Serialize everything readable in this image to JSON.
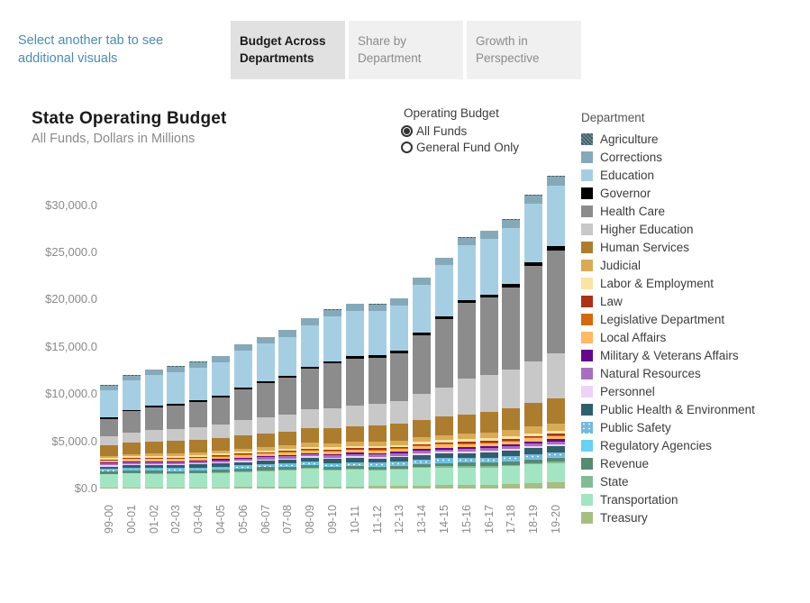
{
  "page": {
    "intro_text": "Select another tab to see additional visuals"
  },
  "tabs": [
    {
      "label": "Budget Across Departments",
      "active": true
    },
    {
      "label": "Share by Department",
      "active": false
    },
    {
      "label": "Growth in Perspective",
      "active": false
    }
  ],
  "controls": {
    "title": "Operating Budget",
    "options": [
      {
        "label": "All Funds",
        "selected": true
      },
      {
        "label": "General Fund Only",
        "selected": false
      }
    ]
  },
  "chart": {
    "title": "State Operating Budget",
    "subtitle": "All Funds, Dollars in Millions"
  },
  "legend": {
    "title": "Department"
  },
  "chart_data": {
    "type": "bar",
    "stacked": true,
    "title": "State Operating Budget",
    "subtitle": "All Funds, Dollars in Millions",
    "ylabel": "Dollars in Millions",
    "ylim": [
      0,
      33500
    ],
    "grid": false,
    "legend_position": "right",
    "yticks": [
      "$0.0",
      "$5,000.0",
      "$10,000.0",
      "$15,000.0",
      "$20,000.0",
      "$25,000.0",
      "$30,000.0"
    ],
    "ytick_values": [
      0,
      5000,
      10000,
      15000,
      20000,
      25000,
      30000
    ],
    "x": [
      "99-00",
      "00-01",
      "01-02",
      "02-03",
      "03-04",
      "04-05",
      "05-06",
      "06-07",
      "07-08",
      "08-09",
      "09-10",
      "10-11",
      "11-12",
      "12-13",
      "13-14",
      "14-15",
      "15-16",
      "16-17",
      "17-18",
      "18-19",
      "19-20"
    ],
    "series": [
      {
        "name": "Agriculture",
        "color": "#4a6f78",
        "pattern": "hatch",
        "values": [
          30,
          31,
          32,
          33,
          34,
          35,
          36,
          37,
          38,
          39,
          40,
          41,
          42,
          43,
          45,
          46,
          48,
          50,
          52,
          55,
          58
        ]
      },
      {
        "name": "Corrections",
        "color": "#85a9b9",
        "pattern": null,
        "values": [
          500,
          530,
          560,
          580,
          600,
          620,
          650,
          680,
          710,
          730,
          740,
          730,
          720,
          730,
          750,
          780,
          800,
          820,
          850,
          900,
          940
        ]
      },
      {
        "name": "Education",
        "color": "#a6cee3",
        "pattern": null,
        "values": [
          2900,
          3100,
          3250,
          3350,
          3450,
          3600,
          3900,
          4000,
          4100,
          4400,
          4700,
          4800,
          4700,
          4800,
          5100,
          5400,
          5800,
          5900,
          5950,
          6200,
          6450
        ]
      },
      {
        "name": "Governor",
        "color": "#000000",
        "pattern": null,
        "values": [
          150,
          160,
          170,
          175,
          180,
          185,
          190,
          200,
          210,
          220,
          230,
          240,
          250,
          260,
          280,
          300,
          320,
          340,
          360,
          380,
          400
        ]
      },
      {
        "name": "Health Care",
        "color": "#8c8c8c",
        "pattern": null,
        "values": [
          1800,
          2200,
          2450,
          2550,
          2700,
          2850,
          3300,
          3600,
          3900,
          4300,
          4800,
          5000,
          4900,
          5100,
          6200,
          7200,
          8000,
          8200,
          8700,
          10100,
          10900
        ]
      },
      {
        "name": "Higher Education",
        "color": "#c8c8c8",
        "pattern": null,
        "values": [
          950,
          1100,
          1200,
          1250,
          1300,
          1400,
          1600,
          1700,
          1800,
          2000,
          2100,
          2200,
          2300,
          2400,
          2700,
          3100,
          3800,
          3900,
          4100,
          4400,
          4800
        ]
      },
      {
        "name": "Human Services",
        "color": "#ad7d2f",
        "pattern": null,
        "values": [
          1150,
          1200,
          1250,
          1280,
          1300,
          1350,
          1400,
          1450,
          1500,
          1550,
          1600,
          1650,
          1700,
          1750,
          1850,
          1950,
          2050,
          2150,
          2300,
          2500,
          2650
        ]
      },
      {
        "name": "Judicial",
        "color": "#d9ab57",
        "pattern": null,
        "values": [
          250,
          270,
          290,
          300,
          310,
          320,
          340,
          360,
          380,
          400,
          420,
          440,
          460,
          480,
          520,
          560,
          600,
          640,
          680,
          720,
          760
        ]
      },
      {
        "name": "Labor & Employment",
        "color": "#fae3a3",
        "pattern": null,
        "values": [
          150,
          155,
          160,
          165,
          170,
          175,
          180,
          185,
          190,
          200,
          210,
          215,
          220,
          225,
          235,
          245,
          255,
          265,
          275,
          290,
          300
        ]
      },
      {
        "name": "Law",
        "color": "#a93317",
        "pattern": null,
        "values": [
          80,
          85,
          90,
          92,
          95,
          98,
          100,
          105,
          110,
          115,
          120,
          125,
          130,
          135,
          140,
          145,
          150,
          155,
          160,
          165,
          170
        ]
      },
      {
        "name": "Legislative Department",
        "color": "#d2690f",
        "pattern": null,
        "values": [
          50,
          52,
          55,
          57,
          60,
          62,
          65,
          67,
          70,
          72,
          75,
          77,
          80,
          82,
          85,
          88,
          90,
          95,
          98,
          100,
          105
        ]
      },
      {
        "name": "Local Affairs",
        "color": "#fdb964",
        "pattern": null,
        "values": [
          200,
          210,
          220,
          225,
          230,
          240,
          250,
          260,
          270,
          280,
          290,
          295,
          300,
          305,
          310,
          315,
          320,
          325,
          330,
          340,
          350
        ]
      },
      {
        "name": "Military & Veterans Affairs",
        "color": "#650887",
        "pattern": null,
        "values": [
          100,
          105,
          110,
          115,
          120,
          125,
          130,
          135,
          140,
          145,
          150,
          155,
          160,
          165,
          175,
          185,
          195,
          205,
          215,
          225,
          235
        ]
      },
      {
        "name": "Natural Resources",
        "color": "#a86fc0",
        "pattern": null,
        "values": [
          180,
          185,
          190,
          195,
          200,
          205,
          210,
          215,
          220,
          225,
          230,
          235,
          240,
          245,
          255,
          260,
          270,
          280,
          285,
          295,
          300
        ]
      },
      {
        "name": "Personnel",
        "color": "#efd3f7",
        "pattern": null,
        "values": [
          120,
          125,
          130,
          132,
          135,
          140,
          145,
          148,
          150,
          155,
          160,
          162,
          165,
          168,
          172,
          178,
          182,
          186,
          190,
          195,
          200
        ]
      },
      {
        "name": "Public Health & Environment",
        "color": "#2f5f6b",
        "pattern": null,
        "values": [
          280,
          290,
          300,
          310,
          320,
          330,
          340,
          350,
          360,
          380,
          400,
          420,
          440,
          460,
          480,
          500,
          520,
          540,
          560,
          590,
          620
        ]
      },
      {
        "name": "Public Safety",
        "color": "#74b9de",
        "pattern": "dots",
        "values": [
          200,
          210,
          220,
          230,
          240,
          250,
          260,
          270,
          280,
          300,
          320,
          330,
          340,
          350,
          370,
          390,
          410,
          430,
          450,
          470,
          490
        ]
      },
      {
        "name": "Regulatory Agencies",
        "color": "#69d1f2",
        "pattern": null,
        "values": [
          60,
          62,
          65,
          67,
          70,
          72,
          75,
          77,
          80,
          82,
          85,
          87,
          90,
          92,
          95,
          97,
          100,
          103,
          105,
          108,
          110
        ]
      },
      {
        "name": "Revenue",
        "color": "#588a72",
        "pattern": null,
        "values": [
          250,
          260,
          270,
          275,
          280,
          290,
          300,
          310,
          315,
          320,
          325,
          330,
          335,
          340,
          350,
          355,
          365,
          370,
          380,
          390,
          400
        ]
      },
      {
        "name": "State",
        "color": "#82bc96",
        "pattern": null,
        "values": [
          50,
          55,
          60,
          62,
          65,
          68,
          70,
          75,
          80,
          85,
          90,
          95,
          100,
          105,
          115,
          120,
          130,
          135,
          145,
          150,
          160
        ]
      },
      {
        "name": "Transportation",
        "color": "#a3e5c3",
        "pattern": null,
        "values": [
          1400,
          1500,
          1450,
          1400,
          1450,
          1500,
          1600,
          1700,
          1750,
          1900,
          1700,
          1750,
          1650,
          1700,
          1850,
          1900,
          1850,
          1800,
          1850,
          1950,
          2000
        ]
      },
      {
        "name": "Treasury",
        "color": "#a8bd83",
        "pattern": null,
        "values": [
          100,
          110,
          120,
          125,
          130,
          140,
          150,
          160,
          170,
          180,
          200,
          220,
          240,
          260,
          300,
          340,
          380,
          420,
          500,
          600,
          700
        ]
      }
    ]
  }
}
